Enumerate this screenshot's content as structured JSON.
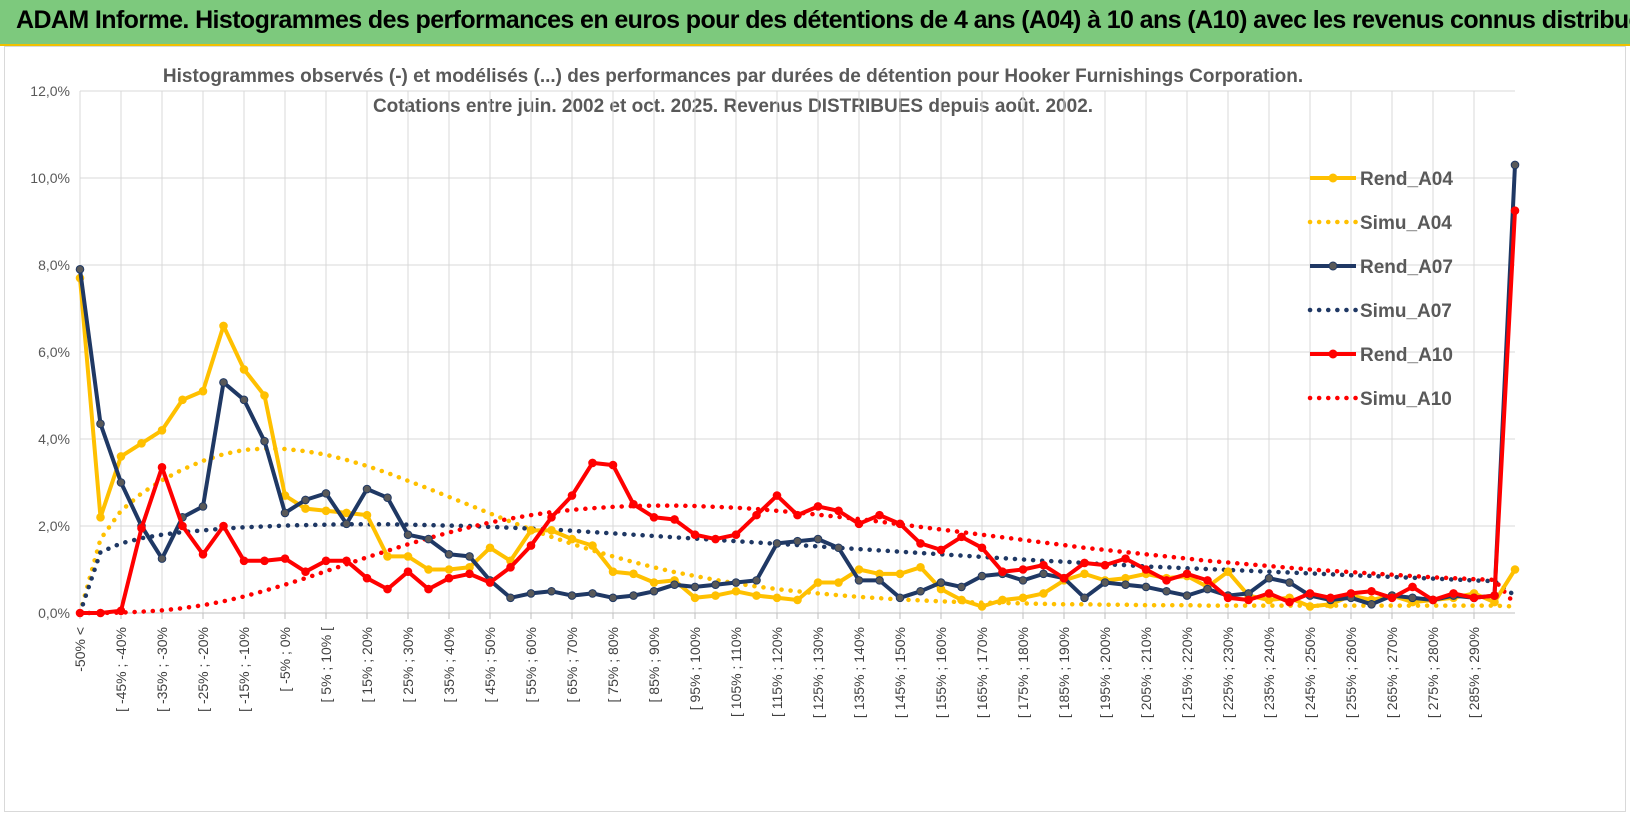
{
  "header": {
    "title": "ADAM Informe. Histogrammes des performances en euros pour des détentions de 4 ans (A04) à 10 ans (A10) avec les revenus connus distribués"
  },
  "colors": {
    "A04": "#ffc000",
    "A07": "#1f3864",
    "A10": "#ff0000",
    "grid": "#d9d9d9",
    "banner": "#7dc97d"
  },
  "chart_data": {
    "type": "line",
    "title": "Histogrammes observés (-) et modélisés (...) des performances par durées de détention pour Hooker Furnishings Corporation.",
    "subtitle": "Cotations entre juin. 2002 et oct. 2025.  Revenus DISTRIBUES depuis août. 2002.",
    "xlabel": "",
    "ylabel": "",
    "ylim": [
      0,
      12
    ],
    "yticks": [
      "0,0%",
      "2,0%",
      "4,0%",
      "6,0%",
      "8,0%",
      "10,0%",
      "12,0%"
    ],
    "grid": true,
    "legend_position": "right",
    "x_tick_labels": [
      "-50% <",
      "[ -45% ; -40%",
      "[ -35% ; -30%",
      "[ -25% ; -20%",
      "[ -15% ; -10%",
      "[ -5% ; 0%",
      "[ 5% ; 10% [",
      "[ 15% ; 20%",
      "[ 25% ; 30%",
      "[ 35% ; 40%",
      "[ 45% ; 50%",
      "[ 55% ; 60%",
      "[ 65% ; 70%",
      "[ 75% ; 80%",
      "[ 85% ; 90%",
      "[ 95% ; 100%",
      "[ 105% ; 110%",
      "[ 115% ; 120%",
      "[ 125% ; 130%",
      "[ 135% ; 140%",
      "[ 145% ; 150%",
      "[ 155% ; 160%",
      "[ 165% ; 170%",
      "[ 175% ; 180%",
      "[ 185% ; 190%",
      "[ 195% ; 200%",
      "[ 205% ; 210%",
      "[ 215% ; 220%",
      "[ 225% ; 230%",
      "[ 235% ; 240%",
      "[ 245% ; 250%",
      "[ 255% ; 260%",
      "[ 265% ; 270%",
      "[ 275% ; 280%",
      "[ 285% ; 290%"
    ],
    "series": [
      {
        "name": "Rend_A04",
        "style": "solid",
        "color": "#ffc000",
        "values": [
          7.7,
          2.2,
          3.6,
          3.9,
          4.2,
          4.9,
          5.1,
          6.6,
          5.6,
          5.0,
          2.7,
          2.4,
          2.35,
          2.3,
          2.25,
          1.3,
          1.3,
          1.0,
          1.0,
          1.05,
          1.5,
          1.2,
          1.9,
          1.9,
          1.7,
          1.55,
          0.95,
          0.9,
          0.7,
          0.75,
          0.35,
          0.4,
          0.5,
          0.4,
          0.35,
          0.3,
          0.7,
          0.7,
          1.0,
          0.9,
          0.9,
          1.05,
          0.55,
          0.3,
          0.15,
          0.3,
          0.35,
          0.45,
          0.75,
          0.9,
          0.75,
          0.8,
          0.9,
          0.8,
          0.85,
          0.6,
          0.95,
          0.4,
          0.3,
          0.35,
          0.15,
          0.2,
          0.4,
          0.3,
          0.4,
          0.25,
          0.3,
          0.35,
          0.45,
          0.25,
          1.0
        ]
      },
      {
        "name": "Simu_A04",
        "style": "dotted",
        "color": "#ffc000",
        "values": [
          0.0,
          1.7,
          2.35,
          2.75,
          3.05,
          3.3,
          3.5,
          3.65,
          3.75,
          3.78,
          3.77,
          3.72,
          3.64,
          3.52,
          3.38,
          3.22,
          3.04,
          2.86,
          2.67,
          2.48,
          2.29,
          2.1,
          1.92,
          1.75,
          1.59,
          1.44,
          1.3,
          1.17,
          1.05,
          0.94,
          0.85,
          0.76,
          0.68,
          0.61,
          0.55,
          0.5,
          0.45,
          0.41,
          0.37,
          0.34,
          0.31,
          0.29,
          0.27,
          0.25,
          0.24,
          0.23,
          0.22,
          0.21,
          0.2,
          0.2,
          0.19,
          0.19,
          0.18,
          0.18,
          0.18,
          0.17,
          0.17,
          0.17,
          0.17,
          0.17,
          0.17,
          0.17,
          0.17,
          0.17,
          0.17,
          0.17,
          0.17,
          0.17,
          0.17,
          0.17,
          0.15
        ]
      },
      {
        "name": "Rend_A07",
        "style": "solid",
        "color": "#1f3864",
        "values": [
          7.9,
          4.35,
          3.0,
          2.0,
          1.25,
          2.2,
          2.45,
          5.3,
          4.9,
          3.95,
          2.3,
          2.6,
          2.75,
          2.05,
          2.85,
          2.65,
          1.8,
          1.7,
          1.35,
          1.3,
          0.75,
          0.35,
          0.45,
          0.5,
          0.4,
          0.45,
          0.35,
          0.4,
          0.5,
          0.65,
          0.6,
          0.65,
          0.7,
          0.75,
          1.6,
          1.65,
          1.7,
          1.5,
          0.75,
          0.75,
          0.35,
          0.5,
          0.7,
          0.6,
          0.85,
          0.9,
          0.75,
          0.9,
          0.8,
          0.35,
          0.7,
          0.65,
          0.6,
          0.5,
          0.4,
          0.55,
          0.4,
          0.45,
          0.8,
          0.7,
          0.4,
          0.3,
          0.35,
          0.2,
          0.4,
          0.35,
          0.3,
          0.4,
          0.35,
          0.4,
          10.3
        ]
      },
      {
        "name": "Simu_A07",
        "style": "dotted",
        "color": "#1f3864",
        "values": [
          0.0,
          1.4,
          1.6,
          1.72,
          1.8,
          1.86,
          1.9,
          1.94,
          1.97,
          1.99,
          2.01,
          2.02,
          2.03,
          2.04,
          2.04,
          2.04,
          2.03,
          2.02,
          2.01,
          2.0,
          1.98,
          1.96,
          1.94,
          1.92,
          1.89,
          1.86,
          1.83,
          1.8,
          1.77,
          1.74,
          1.71,
          1.68,
          1.65,
          1.62,
          1.59,
          1.56,
          1.53,
          1.5,
          1.47,
          1.44,
          1.41,
          1.38,
          1.35,
          1.32,
          1.29,
          1.26,
          1.23,
          1.2,
          1.18,
          1.15,
          1.12,
          1.1,
          1.07,
          1.05,
          1.03,
          1.01,
          0.99,
          0.97,
          0.95,
          0.93,
          0.91,
          0.89,
          0.87,
          0.85,
          0.83,
          0.81,
          0.79,
          0.77,
          0.75,
          0.73,
          0.4
        ]
      },
      {
        "name": "Rend_A10",
        "style": "solid",
        "color": "#ff0000",
        "values": [
          0.0,
          0.0,
          0.05,
          1.95,
          3.35,
          2.0,
          1.35,
          2.0,
          1.2,
          1.2,
          1.25,
          0.95,
          1.2,
          1.2,
          0.8,
          0.55,
          0.95,
          0.55,
          0.8,
          0.9,
          0.7,
          1.05,
          1.55,
          2.2,
          2.7,
          3.45,
          3.4,
          2.5,
          2.2,
          2.15,
          1.8,
          1.7,
          1.8,
          2.25,
          2.7,
          2.25,
          2.45,
          2.35,
          2.05,
          2.25,
          2.05,
          1.6,
          1.45,
          1.75,
          1.5,
          0.95,
          1.0,
          1.1,
          0.8,
          1.15,
          1.1,
          1.25,
          1.0,
          0.75,
          0.9,
          0.75,
          0.35,
          0.3,
          0.45,
          0.25,
          0.45,
          0.35,
          0.45,
          0.5,
          0.35,
          0.6,
          0.3,
          0.45,
          0.35,
          0.4,
          9.25
        ]
      },
      {
        "name": "Simu_A10",
        "style": "dotted",
        "color": "#ff0000",
        "values": [
          0.0,
          0.0,
          0.01,
          0.03,
          0.06,
          0.11,
          0.18,
          0.27,
          0.38,
          0.51,
          0.65,
          0.8,
          0.96,
          1.12,
          1.28,
          1.43,
          1.58,
          1.72,
          1.85,
          1.97,
          2.08,
          2.17,
          2.25,
          2.32,
          2.37,
          2.41,
          2.44,
          2.46,
          2.47,
          2.47,
          2.46,
          2.44,
          2.42,
          2.39,
          2.35,
          2.31,
          2.26,
          2.21,
          2.16,
          2.1,
          2.04,
          1.98,
          1.92,
          1.86,
          1.8,
          1.74,
          1.68,
          1.62,
          1.56,
          1.5,
          1.45,
          1.4,
          1.35,
          1.3,
          1.25,
          1.2,
          1.16,
          1.12,
          1.08,
          1.04,
          1.0,
          0.97,
          0.94,
          0.91,
          0.88,
          0.85,
          0.82,
          0.8,
          0.78,
          0.76,
          0.2
        ]
      }
    ]
  }
}
